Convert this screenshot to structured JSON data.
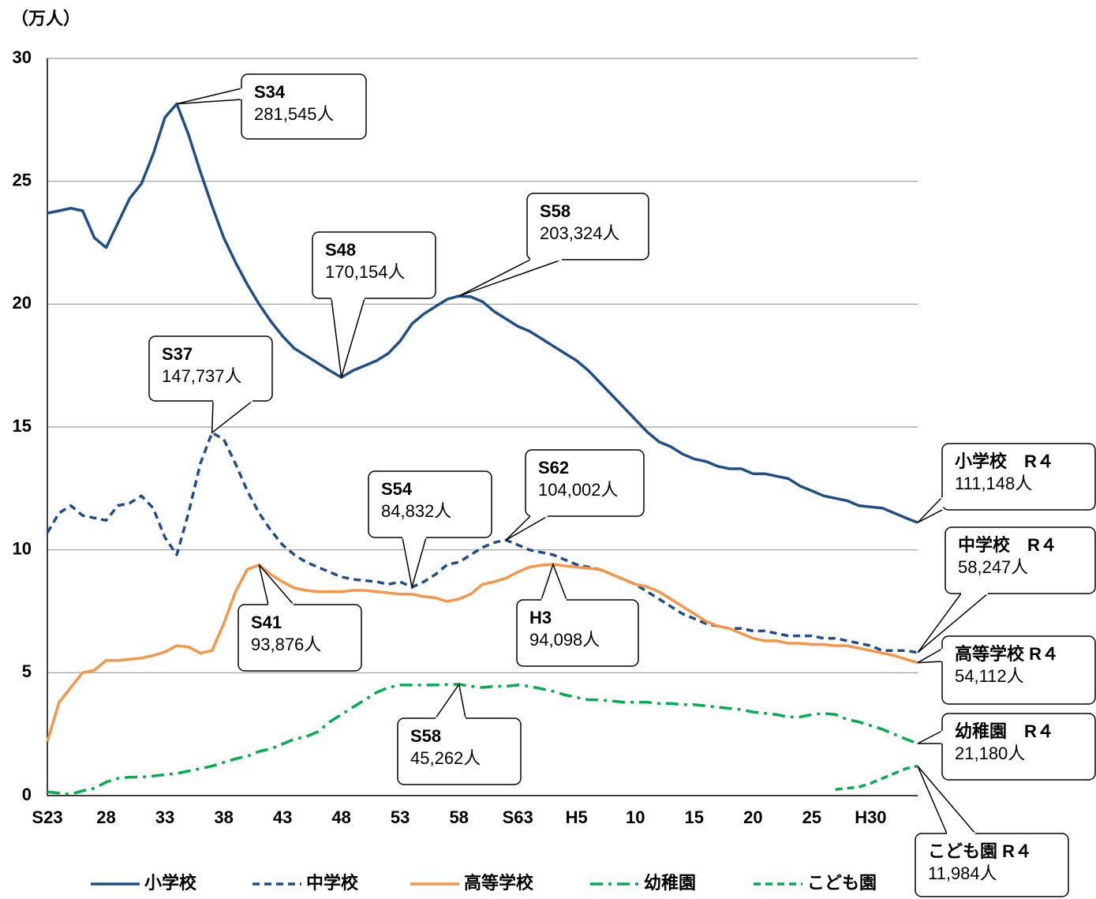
{
  "chart_data": {
    "type": "line",
    "y_unit": "（万人）",
    "ylim": [
      0,
      30
    ],
    "yticks": [
      0,
      5,
      10,
      15,
      20,
      25,
      30
    ],
    "grid": true,
    "categories": [
      "S23",
      null,
      null,
      null,
      null,
      "28",
      null,
      null,
      null,
      null,
      "33",
      null,
      null,
      null,
      null,
      "38",
      null,
      null,
      null,
      null,
      "43",
      null,
      null,
      null,
      null,
      "48",
      null,
      null,
      null,
      null,
      "53",
      null,
      null,
      null,
      null,
      "58",
      null,
      null,
      null,
      null,
      "S63",
      null,
      null,
      null,
      null,
      "H5",
      null,
      null,
      null,
      null,
      "10",
      null,
      null,
      null,
      null,
      "15",
      null,
      null,
      null,
      null,
      "20",
      null,
      null,
      null,
      null,
      "25",
      null,
      null,
      null,
      null,
      "H30",
      null,
      null,
      null,
      null
    ],
    "series": [
      {
        "name": "小学校",
        "color": "#1f4e8c",
        "dash": "solid",
        "values": [
          23.7,
          23.8,
          23.9,
          23.8,
          22.7,
          22.3,
          23.3,
          24.3,
          24.9,
          26.1,
          27.6,
          28.15,
          26.9,
          25.4,
          24.0,
          22.7,
          21.7,
          20.8,
          20.0,
          19.3,
          18.7,
          18.2,
          17.9,
          17.6,
          17.3,
          17.02,
          17.3,
          17.5,
          17.7,
          18.0,
          18.5,
          19.2,
          19.6,
          19.9,
          20.2,
          20.33,
          20.3,
          20.1,
          19.7,
          19.4,
          19.1,
          18.9,
          18.6,
          18.3,
          18.0,
          17.7,
          17.3,
          16.8,
          16.3,
          15.8,
          15.3,
          14.8,
          14.4,
          14.2,
          13.9,
          13.7,
          13.6,
          13.4,
          13.3,
          13.3,
          13.1,
          13.1,
          13.0,
          12.9,
          12.6,
          12.4,
          12.2,
          12.1,
          12.0,
          11.8,
          11.75,
          11.7,
          11.5,
          11.3,
          11.11
        ]
      },
      {
        "name": "中学校",
        "color": "#1f4e8c",
        "dash": "dashed",
        "values": [
          10.7,
          11.5,
          11.8,
          11.4,
          11.3,
          11.2,
          11.8,
          11.9,
          12.2,
          11.7,
          10.5,
          9.8,
          11.5,
          13.5,
          14.77,
          14.5,
          13.5,
          12.4,
          11.5,
          10.8,
          10.2,
          9.8,
          9.5,
          9.3,
          9.1,
          8.9,
          8.8,
          8.75,
          8.7,
          8.6,
          8.7,
          8.48,
          8.7,
          9.0,
          9.4,
          9.5,
          9.8,
          10.1,
          10.3,
          10.4,
          10.2,
          10.0,
          9.9,
          9.8,
          9.6,
          9.4,
          9.3,
          9.2,
          9.0,
          8.8,
          8.6,
          8.3,
          8.0,
          7.7,
          7.4,
          7.2,
          7.0,
          6.9,
          6.8,
          6.8,
          6.7,
          6.7,
          6.6,
          6.5,
          6.5,
          6.5,
          6.4,
          6.4,
          6.3,
          6.2,
          6.1,
          5.9,
          5.9,
          5.9,
          5.82
        ]
      },
      {
        "name": "高等学校",
        "color": "#f79646",
        "dash": "solid",
        "values": [
          2.2,
          3.8,
          4.4,
          5.0,
          5.1,
          5.5,
          5.5,
          5.55,
          5.6,
          5.7,
          5.85,
          6.1,
          6.05,
          5.8,
          5.9,
          7.0,
          8.3,
          9.2,
          9.39,
          9.0,
          8.7,
          8.45,
          8.35,
          8.3,
          8.3,
          8.3,
          8.35,
          8.35,
          8.3,
          8.25,
          8.2,
          8.2,
          8.1,
          8.05,
          7.9,
          8.0,
          8.2,
          8.6,
          8.7,
          8.85,
          9.1,
          9.3,
          9.38,
          9.41,
          9.35,
          9.3,
          9.25,
          9.2,
          9.0,
          8.8,
          8.6,
          8.5,
          8.3,
          8.0,
          7.7,
          7.4,
          7.1,
          6.9,
          6.8,
          6.6,
          6.4,
          6.3,
          6.3,
          6.2,
          6.2,
          6.15,
          6.15,
          6.1,
          6.1,
          6.0,
          5.9,
          5.8,
          5.7,
          5.55,
          5.41
        ]
      },
      {
        "name": "幼稚園",
        "color": "#00b050",
        "dash": "dashdot",
        "values": [
          0.15,
          0.1,
          0.05,
          0.2,
          0.3,
          0.55,
          0.7,
          0.75,
          0.75,
          0.8,
          0.85,
          0.9,
          1.0,
          1.1,
          1.2,
          1.35,
          1.5,
          1.6,
          1.8,
          1.9,
          2.1,
          2.3,
          2.4,
          2.6,
          3.0,
          3.3,
          3.6,
          3.9,
          4.2,
          4.4,
          4.5,
          4.5,
          4.5,
          4.5,
          4.52,
          4.53,
          4.45,
          4.4,
          4.45,
          4.45,
          4.5,
          4.45,
          4.35,
          4.25,
          4.1,
          4.0,
          3.9,
          3.9,
          3.85,
          3.8,
          3.8,
          3.8,
          3.75,
          3.75,
          3.7,
          3.7,
          3.65,
          3.6,
          3.55,
          3.5,
          3.4,
          3.35,
          3.3,
          3.2,
          3.2,
          3.3,
          3.35,
          3.3,
          3.1,
          3.0,
          2.85,
          2.7,
          2.5,
          2.3,
          2.12
        ]
      },
      {
        "name": "こども園",
        "color": "#00b050",
        "dash": "dashed",
        "values": [
          null,
          null,
          null,
          null,
          null,
          null,
          null,
          null,
          null,
          null,
          null,
          null,
          null,
          null,
          null,
          null,
          null,
          null,
          null,
          null,
          null,
          null,
          null,
          null,
          null,
          null,
          null,
          null,
          null,
          null,
          null,
          null,
          null,
          null,
          null,
          null,
          null,
          null,
          null,
          null,
          null,
          null,
          null,
          null,
          null,
          null,
          null,
          null,
          null,
          null,
          null,
          null,
          null,
          null,
          null,
          null,
          null,
          null,
          null,
          null,
          null,
          null,
          null,
          null,
          null,
          null,
          null,
          0.25,
          0.3,
          0.35,
          0.5,
          0.7,
          0.9,
          1.1,
          1.2
        ]
      }
    ],
    "annotations": [
      {
        "title": "S34",
        "text": "281,545人"
      },
      {
        "title": "S48",
        "text": "170,154人"
      },
      {
        "title": "S58",
        "text": "203,324人"
      },
      {
        "title": "S37",
        "text": "147,737人"
      },
      {
        "title": "S54",
        "text": "84,832人"
      },
      {
        "title": "S62",
        "text": "104,002人"
      },
      {
        "title": "S41",
        "text": "93,876人"
      },
      {
        "title": "H3",
        "text": "94,098人"
      },
      {
        "title": "S58",
        "text": "45,262人"
      },
      {
        "title": "小学校　R４",
        "text": "111,148人"
      },
      {
        "title": "中学校　R４",
        "text": "58,247人"
      },
      {
        "title": "高等学校 R４",
        "text": "54,112人"
      },
      {
        "title": "幼稚園　R４",
        "text": "21,180人"
      },
      {
        "title": "こども園 R４",
        "text": "11,984人"
      }
    ]
  }
}
